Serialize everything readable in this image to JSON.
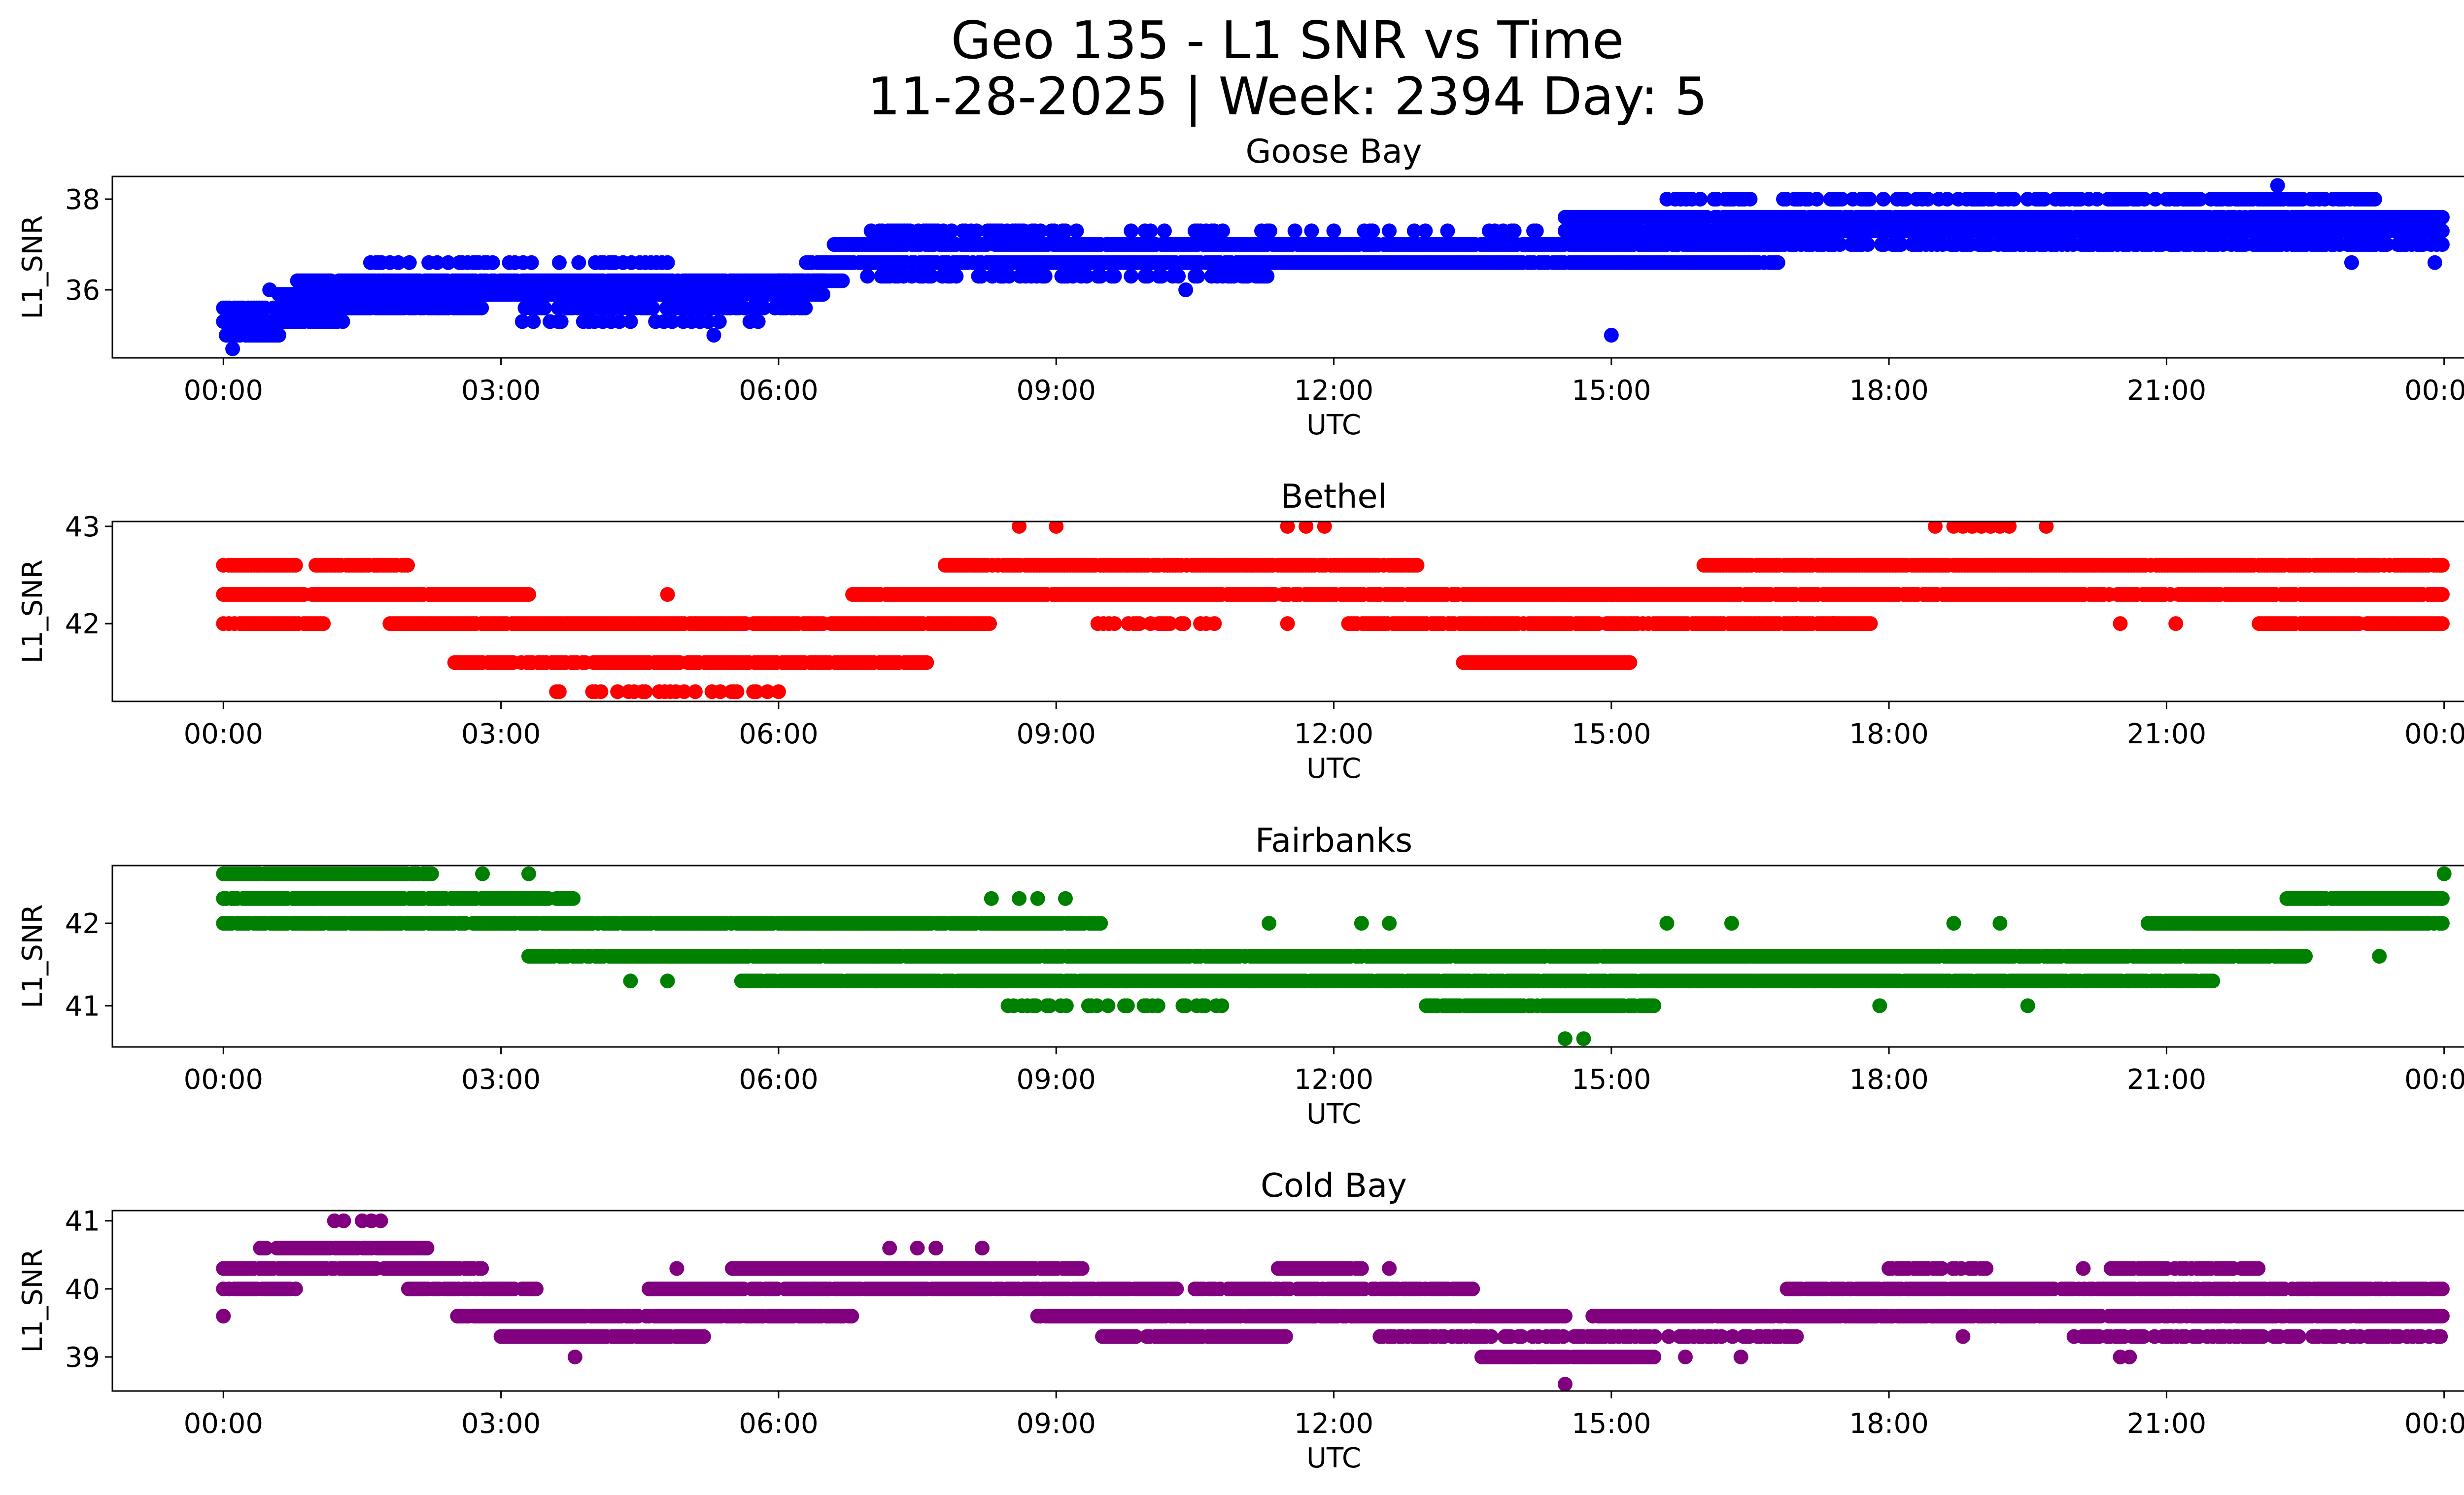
{
  "figure": {
    "title_line1": "Geo 135 - L1 SNR vs Time",
    "title_line2": "11-28-2025 | Week: 2394 Day: 5"
  },
  "chart_data": [
    {
      "type": "scatter",
      "title": "Goose Bay",
      "xlabel": "UTC",
      "ylabel": "L1_SNR",
      "color": "#0000ff",
      "xlim": [
        -1.2,
        25.2
      ],
      "ylim": [
        34.5,
        38.5
      ],
      "xticks": [
        "00:00",
        "03:00",
        "06:00",
        "09:00",
        "12:00",
        "15:00",
        "18:00",
        "21:00",
        "00:00"
      ],
      "xtick_values": [
        0,
        3,
        6,
        9,
        12,
        15,
        18,
        21,
        24
      ],
      "yticks": [
        36,
        38
      ],
      "bands": [
        {
          "y": 35.0,
          "x_start": 0.0,
          "x_end": 0.6,
          "density": 0.9
        },
        {
          "y": 35.3,
          "x_start": 0.0,
          "x_end": 1.3,
          "density": 0.9
        },
        {
          "y": 35.6,
          "x_start": 0.0,
          "x_end": 2.8,
          "density": 0.9
        },
        {
          "y": 35.6,
          "x_start": 3.2,
          "x_end": 6.3,
          "density": 0.55
        },
        {
          "y": 35.3,
          "x_start": 3.2,
          "x_end": 5.8,
          "density": 0.25
        },
        {
          "y": 35.9,
          "x_start": 0.6,
          "x_end": 6.5,
          "density": 0.95
        },
        {
          "y": 36.2,
          "x_start": 0.8,
          "x_end": 6.5,
          "density": 0.95
        },
        {
          "y": 36.6,
          "x_start": 1.5,
          "x_end": 4.8,
          "density": 0.35
        },
        {
          "y": 36.2,
          "x_start": 6.0,
          "x_end": 6.7,
          "density": 1.0
        },
        {
          "y": 36.6,
          "x_start": 6.3,
          "x_end": 16.8,
          "density": 0.95
        },
        {
          "y": 37.0,
          "x_start": 6.6,
          "x_end": 16.8,
          "density": 0.95
        },
        {
          "y": 37.3,
          "x_start": 7.0,
          "x_end": 9.3,
          "density": 0.6
        },
        {
          "y": 36.3,
          "x_start": 6.9,
          "x_end": 11.3,
          "density": 0.45
        },
        {
          "y": 37.3,
          "x_start": 9.6,
          "x_end": 14.5,
          "density": 0.2
        },
        {
          "y": 37.3,
          "x_start": 14.5,
          "x_end": 24.0,
          "density": 0.95
        },
        {
          "y": 37.6,
          "x_start": 14.5,
          "x_end": 24.0,
          "density": 0.95
        },
        {
          "y": 37.0,
          "x_start": 16.6,
          "x_end": 24.0,
          "density": 0.7
        },
        {
          "y": 38.0,
          "x_start": 15.6,
          "x_end": 23.3,
          "density": 0.5
        }
      ],
      "points": [
        {
          "x": 0.1,
          "y": 34.7
        },
        {
          "x": 1.0,
          "y": 36.0
        },
        {
          "x": 15.0,
          "y": 35.0
        },
        {
          "x": 5.3,
          "y": 35.0
        },
        {
          "x": 22.2,
          "y": 38.3
        },
        {
          "x": 10.4,
          "y": 36.0
        },
        {
          "x": 23.0,
          "y": 36.6
        },
        {
          "x": 23.9,
          "y": 36.6
        },
        {
          "x": 15.2,
          "y": 36.6
        },
        {
          "x": 17.4,
          "y": 38.0
        },
        {
          "x": 0.5,
          "y": 36.0
        }
      ]
    },
    {
      "type": "scatter",
      "title": "Bethel",
      "xlabel": "UTC",
      "ylabel": "L1_SNR",
      "color": "#ff0000",
      "xlim": [
        -1.2,
        25.2
      ],
      "ylim": [
        41.2,
        43.05
      ],
      "xticks": [
        "00:00",
        "03:00",
        "06:00",
        "09:00",
        "12:00",
        "15:00",
        "18:00",
        "21:00",
        "00:00"
      ],
      "xtick_values": [
        0,
        3,
        6,
        9,
        12,
        15,
        18,
        21,
        24
      ],
      "yticks": [
        42,
        43
      ],
      "bands": [
        {
          "y": 42.6,
          "x_start": 0.0,
          "x_end": 0.8,
          "density": 0.9
        },
        {
          "y": 42.6,
          "x_start": 1.0,
          "x_end": 2.0,
          "density": 0.9
        },
        {
          "y": 42.3,
          "x_start": 0.0,
          "x_end": 3.3,
          "density": 0.95
        },
        {
          "y": 42.0,
          "x_start": 0.0,
          "x_end": 1.1,
          "density": 0.8
        },
        {
          "y": 42.0,
          "x_start": 1.8,
          "x_end": 8.3,
          "density": 0.95
        },
        {
          "y": 41.6,
          "x_start": 2.5,
          "x_end": 7.6,
          "density": 0.9
        },
        {
          "y": 41.3,
          "x_start": 3.6,
          "x_end": 6.0,
          "density": 0.35
        },
        {
          "y": 42.3,
          "x_start": 6.8,
          "x_end": 15.3,
          "density": 0.95
        },
        {
          "y": 42.6,
          "x_start": 7.8,
          "x_end": 12.9,
          "density": 0.95
        },
        {
          "y": 42.0,
          "x_start": 9.3,
          "x_end": 10.8,
          "density": 0.35
        },
        {
          "y": 42.0,
          "x_start": 12.1,
          "x_end": 17.8,
          "density": 0.9
        },
        {
          "y": 41.6,
          "x_start": 13.4,
          "x_end": 15.2,
          "density": 1.0
        },
        {
          "y": 42.3,
          "x_start": 14.5,
          "x_end": 24.0,
          "density": 0.95
        },
        {
          "y": 42.6,
          "x_start": 16.0,
          "x_end": 24.0,
          "density": 0.95
        },
        {
          "y": 42.0,
          "x_start": 22.0,
          "x_end": 24.0,
          "density": 0.9
        }
      ],
      "points": [
        {
          "x": 4.8,
          "y": 42.3
        },
        {
          "x": 8.6,
          "y": 43.0
        },
        {
          "x": 9.0,
          "y": 43.0
        },
        {
          "x": 11.5,
          "y": 43.0
        },
        {
          "x": 11.7,
          "y": 43.0
        },
        {
          "x": 11.9,
          "y": 43.0
        },
        {
          "x": 18.5,
          "y": 43.0
        },
        {
          "x": 18.7,
          "y": 43.0
        },
        {
          "x": 18.8,
          "y": 43.0
        },
        {
          "x": 18.9,
          "y": 43.0
        },
        {
          "x": 19.0,
          "y": 43.0
        },
        {
          "x": 19.1,
          "y": 43.0
        },
        {
          "x": 19.2,
          "y": 43.0
        },
        {
          "x": 19.3,
          "y": 43.0
        },
        {
          "x": 19.7,
          "y": 43.0
        },
        {
          "x": 11.5,
          "y": 42.0
        },
        {
          "x": 20.5,
          "y": 42.0
        },
        {
          "x": 21.1,
          "y": 42.0
        },
        {
          "x": 17.0,
          "y": 42.0
        },
        {
          "x": 17.4,
          "y": 42.0
        }
      ]
    },
    {
      "type": "scatter",
      "title": "Fairbanks",
      "xlabel": "UTC",
      "ylabel": "L1_SNR",
      "color": "#008000",
      "xlim": [
        -1.2,
        25.2
      ],
      "ylim": [
        40.5,
        42.7
      ],
      "xticks": [
        "00:00",
        "03:00",
        "06:00",
        "09:00",
        "12:00",
        "15:00",
        "18:00",
        "21:00",
        "00:00"
      ],
      "xtick_values": [
        0,
        3,
        6,
        9,
        12,
        15,
        18,
        21,
        24
      ],
      "yticks": [
        41,
        42
      ],
      "bands": [
        {
          "y": 42.6,
          "x_start": 0.0,
          "x_end": 2.3,
          "density": 0.95
        },
        {
          "y": 42.3,
          "x_start": 0.0,
          "x_end": 3.8,
          "density": 0.95
        },
        {
          "y": 42.0,
          "x_start": 0.0,
          "x_end": 9.5,
          "density": 0.9
        },
        {
          "y": 41.6,
          "x_start": 3.3,
          "x_end": 22.5,
          "density": 0.95
        },
        {
          "y": 41.3,
          "x_start": 5.6,
          "x_end": 21.5,
          "density": 0.95
        },
        {
          "y": 41.0,
          "x_start": 13.0,
          "x_end": 15.5,
          "density": 0.9
        },
        {
          "y": 41.0,
          "x_start": 8.3,
          "x_end": 10.9,
          "density": 0.35
        },
        {
          "y": 42.0,
          "x_start": 20.8,
          "x_end": 24.0,
          "density": 0.95
        },
        {
          "y": 42.3,
          "x_start": 22.3,
          "x_end": 24.0,
          "density": 0.95
        }
      ],
      "points": [
        {
          "x": 2.8,
          "y": 42.6
        },
        {
          "x": 3.3,
          "y": 42.6
        },
        {
          "x": 8.3,
          "y": 42.3
        },
        {
          "x": 8.6,
          "y": 42.3
        },
        {
          "x": 8.8,
          "y": 42.3
        },
        {
          "x": 9.1,
          "y": 42.3
        },
        {
          "x": 14.5,
          "y": 40.6
        },
        {
          "x": 14.7,
          "y": 40.6
        },
        {
          "x": 24.0,
          "y": 42.6
        },
        {
          "x": 4.4,
          "y": 41.3
        },
        {
          "x": 4.8,
          "y": 41.3
        },
        {
          "x": 11.3,
          "y": 42.0
        },
        {
          "x": 12.3,
          "y": 42.0
        },
        {
          "x": 12.6,
          "y": 42.0
        },
        {
          "x": 15.6,
          "y": 42.0
        },
        {
          "x": 16.3,
          "y": 42.0
        },
        {
          "x": 18.7,
          "y": 42.0
        },
        {
          "x": 19.2,
          "y": 42.0
        },
        {
          "x": 19.5,
          "y": 41.0
        },
        {
          "x": 17.9,
          "y": 41.0
        },
        {
          "x": 23.3,
          "y": 41.6
        }
      ]
    },
    {
      "type": "scatter",
      "title": "Cold Bay",
      "xlabel": "UTC",
      "ylabel": "L1_SNR",
      "color": "#800080",
      "xlim": [
        -1.2,
        25.2
      ],
      "ylim": [
        38.5,
        41.15
      ],
      "xticks": [
        "00:00",
        "03:00",
        "06:00",
        "09:00",
        "12:00",
        "15:00",
        "18:00",
        "21:00",
        "00:00"
      ],
      "xtick_values": [
        0,
        3,
        6,
        9,
        12,
        15,
        18,
        21,
        24
      ],
      "yticks": [
        39,
        40,
        41
      ],
      "bands": [
        {
          "y": 40.3,
          "x_start": 0.0,
          "x_end": 2.8,
          "density": 0.95
        },
        {
          "y": 40.0,
          "x_start": 0.0,
          "x_end": 0.8,
          "density": 0.9
        },
        {
          "y": 40.6,
          "x_start": 0.4,
          "x_end": 2.2,
          "density": 0.95
        },
        {
          "y": 40.0,
          "x_start": 2.0,
          "x_end": 3.4,
          "density": 0.9
        },
        {
          "y": 39.6,
          "x_start": 2.5,
          "x_end": 6.8,
          "density": 0.9
        },
        {
          "y": 39.3,
          "x_start": 3.0,
          "x_end": 5.2,
          "density": 0.9
        },
        {
          "y": 40.0,
          "x_start": 4.6,
          "x_end": 10.3,
          "density": 0.9
        },
        {
          "y": 40.3,
          "x_start": 5.5,
          "x_end": 9.3,
          "density": 0.95
        },
        {
          "y": 39.6,
          "x_start": 8.8,
          "x_end": 14.5,
          "density": 0.95
        },
        {
          "y": 39.3,
          "x_start": 9.5,
          "x_end": 11.5,
          "density": 0.85
        },
        {
          "y": 40.0,
          "x_start": 10.5,
          "x_end": 13.5,
          "density": 0.9
        },
        {
          "y": 40.3,
          "x_start": 11.4,
          "x_end": 12.3,
          "density": 0.9
        },
        {
          "y": 39.3,
          "x_start": 12.5,
          "x_end": 17.0,
          "density": 0.6
        },
        {
          "y": 39.0,
          "x_start": 13.6,
          "x_end": 15.5,
          "density": 0.95
        },
        {
          "y": 39.6,
          "x_start": 14.8,
          "x_end": 24.0,
          "density": 0.95
        },
        {
          "y": 40.0,
          "x_start": 16.9,
          "x_end": 24.0,
          "density": 0.9
        },
        {
          "y": 40.3,
          "x_start": 18.0,
          "x_end": 19.1,
          "density": 0.7
        },
        {
          "y": 40.3,
          "x_start": 20.4,
          "x_end": 22.0,
          "density": 0.8
        },
        {
          "y": 39.3,
          "x_start": 20.0,
          "x_end": 24.0,
          "density": 0.6
        }
      ],
      "points": [
        {
          "x": 0.0,
          "y": 39.6
        },
        {
          "x": 1.2,
          "y": 41.0
        },
        {
          "x": 1.3,
          "y": 41.0
        },
        {
          "x": 1.5,
          "y": 41.0
        },
        {
          "x": 1.6,
          "y": 41.0
        },
        {
          "x": 1.7,
          "y": 41.0
        },
        {
          "x": 3.8,
          "y": 39.0
        },
        {
          "x": 14.5,
          "y": 38.6
        },
        {
          "x": 15.8,
          "y": 39.0
        },
        {
          "x": 16.4,
          "y": 39.0
        },
        {
          "x": 7.2,
          "y": 40.6
        },
        {
          "x": 7.5,
          "y": 40.6
        },
        {
          "x": 7.7,
          "y": 40.6
        },
        {
          "x": 8.2,
          "y": 40.6
        },
        {
          "x": 20.5,
          "y": 39.0
        },
        {
          "x": 20.6,
          "y": 39.0
        },
        {
          "x": 18.8,
          "y": 39.3
        },
        {
          "x": 12.6,
          "y": 40.3
        },
        {
          "x": 20.1,
          "y": 40.3
        },
        {
          "x": 4.9,
          "y": 40.3
        }
      ]
    }
  ]
}
